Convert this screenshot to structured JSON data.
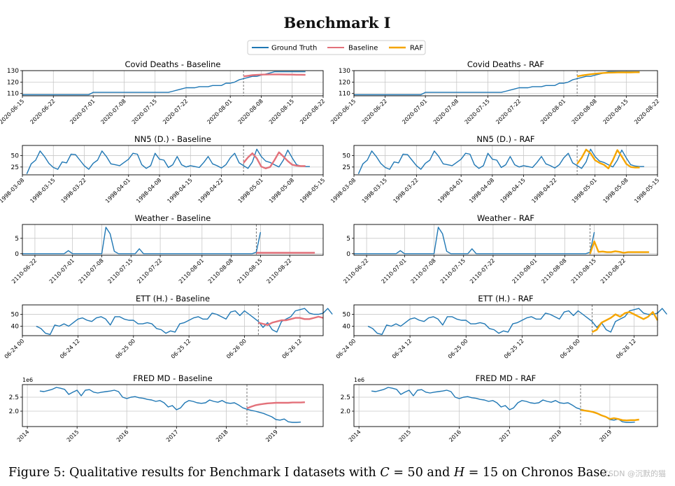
{
  "title": "Benchmark I",
  "legend": [
    "Ground Truth",
    "Baseline",
    "RAF"
  ],
  "colors": {
    "gt": "#1f77b4",
    "baseline": "#e3717a",
    "raf": "#f5a500",
    "grid": "#c8c8c8",
    "cutoff": "#777777"
  },
  "caption": {
    "pre": "Figure 5: Qualitative results for Benchmark I datasets with ",
    "c": "C",
    "mid1": " = 50 and ",
    "h": "H",
    "mid2": " = 15 on Chronos Base."
  },
  "watermark": "CSDN @沉默的猫",
  "chart_data": [
    {
      "type": "line",
      "name": "covid",
      "titles": [
        "Covid Deaths - Baseline",
        "Covid Deaths - RAF"
      ],
      "xlim": [
        0,
        68
      ],
      "ylim": [
        108,
        130
      ],
      "yticks": [
        110,
        120,
        130
      ],
      "xticks": [
        {
          "x": 0,
          "label": "2020-06-15"
        },
        {
          "x": 7,
          "label": "2020-06-22"
        },
        {
          "x": 16,
          "label": "2020-07-01"
        },
        {
          "x": 23,
          "label": "2020-07-08"
        },
        {
          "x": 30,
          "label": "2020-07-15"
        },
        {
          "x": 37,
          "label": "2020-07-22"
        },
        {
          "x": 47,
          "label": "2020-08-01"
        },
        {
          "x": 54,
          "label": "2020-08-08"
        },
        {
          "x": 61,
          "label": "2020-08-15"
        },
        {
          "x": 68,
          "label": "2020-08-22"
        }
      ],
      "cutoff": 50,
      "gt_x0": 0,
      "gt": [
        109,
        109,
        109,
        109,
        109,
        109,
        109,
        109,
        109,
        109,
        109,
        109,
        109,
        109,
        109,
        109,
        111,
        111,
        111,
        111,
        111,
        111,
        111,
        111,
        111,
        111,
        111,
        111,
        111,
        111,
        111,
        111,
        111,
        111,
        112,
        113,
        114,
        115,
        115,
        115,
        116,
        116,
        116,
        117,
        117,
        117,
        119,
        119,
        120,
        122,
        123,
        124,
        125,
        125,
        126,
        127,
        128,
        129,
        129,
        129,
        129,
        129,
        129,
        129,
        129
      ],
      "baseline": [
        125,
        125.5,
        126,
        126.3,
        126.5,
        126.6,
        126.7,
        126.7,
        126.7,
        126.6,
        126.5,
        126.5,
        126.4,
        126.4,
        126.3
      ],
      "raf": [
        125,
        125.7,
        126.3,
        126.8,
        127.3,
        127.7,
        128,
        128.2,
        128.3,
        128.4,
        128.5,
        128.5,
        128.5,
        128.6,
        128.6
      ]
    },
    {
      "type": "line",
      "name": "nn5",
      "titles": [
        "NN5 (D.) - Baseline",
        "NN5 (D.) - RAF"
      ],
      "xlim": [
        0,
        68
      ],
      "ylim": [
        8,
        72
      ],
      "yticks": [
        25,
        50
      ],
      "xticks": [
        {
          "x": 0,
          "label": "1998-03-08"
        },
        {
          "x": 7,
          "label": "1998-03-15"
        },
        {
          "x": 14,
          "label": "1998-03-22"
        },
        {
          "x": 24,
          "label": "1998-04-01"
        },
        {
          "x": 31,
          "label": "1998-04-08"
        },
        {
          "x": 38,
          "label": "1998-04-15"
        },
        {
          "x": 45,
          "label": "1998-04-22"
        },
        {
          "x": 54,
          "label": "1998-05-01"
        },
        {
          "x": 61,
          "label": "1998-05-08"
        },
        {
          "x": 68,
          "label": "1998-05-15"
        }
      ],
      "cutoff": 50,
      "gt_x0": 1,
      "gt": [
        10,
        32,
        40,
        60,
        48,
        33,
        24,
        20,
        36,
        34,
        53,
        52,
        40,
        28,
        20,
        33,
        40,
        60,
        48,
        32,
        30,
        28,
        35,
        42,
        55,
        53,
        30,
        22,
        28,
        55,
        42,
        40,
        24,
        30,
        48,
        30,
        25,
        28,
        26,
        24,
        35,
        48,
        32,
        28,
        23,
        30,
        45,
        55,
        34,
        28,
        22,
        36,
        64,
        48,
        38,
        35,
        30,
        25,
        40,
        62,
        45,
        30,
        27,
        26,
        26
      ],
      "baseline": [
        34,
        46,
        55,
        44,
        26,
        22,
        25,
        40,
        57,
        48,
        38,
        30,
        28,
        27,
        27
      ],
      "raf": [
        32,
        45,
        63,
        55,
        40,
        34,
        30,
        22,
        40,
        62,
        48,
        32,
        25,
        24,
        24
      ]
    },
    {
      "type": "line",
      "name": "weather",
      "titles": [
        "Weather - Baseline",
        "Weather - RAF"
      ],
      "xlim": [
        0,
        72
      ],
      "ylim": [
        -0.5,
        9.5
      ],
      "yticks": [
        0,
        5
      ],
      "xticks": [
        {
          "x": 3,
          "label": "2110-06-22"
        },
        {
          "x": 12,
          "label": "2110-07-01"
        },
        {
          "x": 19,
          "label": "2110-07-08"
        },
        {
          "x": 26,
          "label": "2110-07-15"
        },
        {
          "x": 33,
          "label": "2110-07-22"
        },
        {
          "x": 43,
          "label": "2110-08-01"
        },
        {
          "x": 50,
          "label": "2110-08-08"
        },
        {
          "x": 57,
          "label": "2110-08-15"
        },
        {
          "x": 64,
          "label": "2110-08-22"
        }
      ],
      "cutoff": 56,
      "gt_x0": 0,
      "gt": [
        0,
        0,
        0,
        0,
        0,
        0,
        0,
        0,
        0,
        0,
        0,
        1,
        0,
        0,
        0,
        0,
        0,
        0,
        0,
        0,
        8.6,
        6.5,
        0.8,
        0,
        0,
        0,
        0,
        0,
        1.6,
        0,
        0,
        0,
        0,
        0,
        0,
        0,
        0,
        0,
        0,
        0,
        0,
        0,
        0,
        0,
        0,
        0,
        0,
        0,
        0,
        0,
        0,
        0,
        0,
        0,
        0,
        0,
        0.5,
        7
      ],
      "baseline": [
        0.3,
        0.3,
        0.3,
        0.3,
        0.3,
        0.3,
        0.3,
        0.3,
        0.3,
        0.3,
        0.3,
        0.3,
        0.3,
        0.3,
        0.3
      ],
      "raf": [
        0,
        4,
        0.6,
        0.7,
        0.5,
        0.5,
        0.8,
        0.6,
        0.3,
        0.5,
        0.5,
        0.5,
        0.5,
        0.5,
        0.5
      ]
    },
    {
      "type": "line",
      "name": "ett",
      "titles": [
        "ETT (H.) - Baseline",
        "ETT (H.) - RAF"
      ],
      "xlim": [
        0,
        65
      ],
      "ylim": [
        32,
        58
      ],
      "yticks": [
        40,
        50
      ],
      "xticks": [
        {
          "x": 0,
          "label": "06-24 00"
        },
        {
          "x": 12,
          "label": "06-24 12"
        },
        {
          "x": 24,
          "label": "06-25 00"
        },
        {
          "x": 36,
          "label": "06-25 12"
        },
        {
          "x": 48,
          "label": "06-26 00"
        },
        {
          "x": 60,
          "label": "06-26 12"
        }
      ],
      "cutoff": 51,
      "gt_x0": 3,
      "gt": [
        40,
        38,
        34,
        33,
        41,
        40,
        42,
        40,
        43,
        46,
        47,
        45,
        44,
        47,
        48,
        46,
        41,
        48,
        48,
        46,
        45,
        45,
        42,
        42,
        43,
        42,
        38,
        37,
        34,
        36,
        35,
        42,
        43,
        45,
        47,
        48,
        46,
        46,
        51,
        50,
        48,
        46,
        52,
        53,
        49,
        53,
        50,
        47,
        44,
        39,
        43,
        37,
        35,
        44,
        46,
        48,
        53,
        54,
        55,
        51,
        50,
        50,
        51,
        55,
        50
      ],
      "baseline": [
        43,
        42,
        41,
        43,
        44,
        45,
        45,
        46,
        47,
        47,
        46,
        46,
        47,
        48,
        47
      ],
      "raf": [
        35,
        37,
        43,
        45,
        47,
        50,
        48,
        51,
        52,
        50,
        48,
        46,
        48,
        52,
        45
      ]
    },
    {
      "type": "line",
      "name": "fredmd",
      "titles": [
        "FRED MD - Baseline",
        "FRED MD - RAF"
      ],
      "offset_label": "1e6",
      "xlim": [
        2013.9,
        2019.95
      ],
      "ylim": [
        1.45,
        2.95
      ],
      "yticks": [
        2.0,
        2.5
      ],
      "ytick_labels": [
        "2.0",
        "2.5"
      ],
      "xticks": [
        {
          "x": 2014,
          "label": "2014"
        },
        {
          "x": 2015,
          "label": "2015"
        },
        {
          "x": 2016,
          "label": "2016"
        },
        {
          "x": 2017,
          "label": "2017"
        },
        {
          "x": 2018,
          "label": "2018"
        },
        {
          "x": 2019,
          "label": "2019"
        }
      ],
      "cutoff": 2018.4167,
      "gt_x0": 2014.25,
      "gt_dx": 0.08333,
      "gt": [
        2.72,
        2.7,
        2.74,
        2.78,
        2.85,
        2.82,
        2.78,
        2.6,
        2.68,
        2.75,
        2.55,
        2.75,
        2.77,
        2.68,
        2.65,
        2.68,
        2.7,
        2.72,
        2.75,
        2.7,
        2.5,
        2.45,
        2.5,
        2.52,
        2.48,
        2.46,
        2.42,
        2.4,
        2.35,
        2.38,
        2.3,
        2.15,
        2.2,
        2.05,
        2.12,
        2.3,
        2.38,
        2.35,
        2.3,
        2.28,
        2.3,
        2.4,
        2.35,
        2.32,
        2.38,
        2.3,
        2.28,
        2.3,
        2.22,
        2.12,
        2.07,
        2.03,
        2.0,
        1.96,
        1.92,
        1.86,
        1.8,
        1.7,
        1.68,
        1.72,
        1.62,
        1.6,
        1.6,
        1.61
      ],
      "baseline": [
        2.1,
        2.16,
        2.21,
        2.24,
        2.26,
        2.28,
        2.29,
        2.3,
        2.3,
        2.3,
        2.3,
        2.31,
        2.31,
        2.31,
        2.32
      ],
      "raf": [
        2.05,
        2.02,
        2.0,
        1.97,
        1.92,
        1.85,
        1.8,
        1.72,
        1.75,
        1.72,
        1.68,
        1.67,
        1.68,
        1.68,
        1.7
      ]
    }
  ]
}
